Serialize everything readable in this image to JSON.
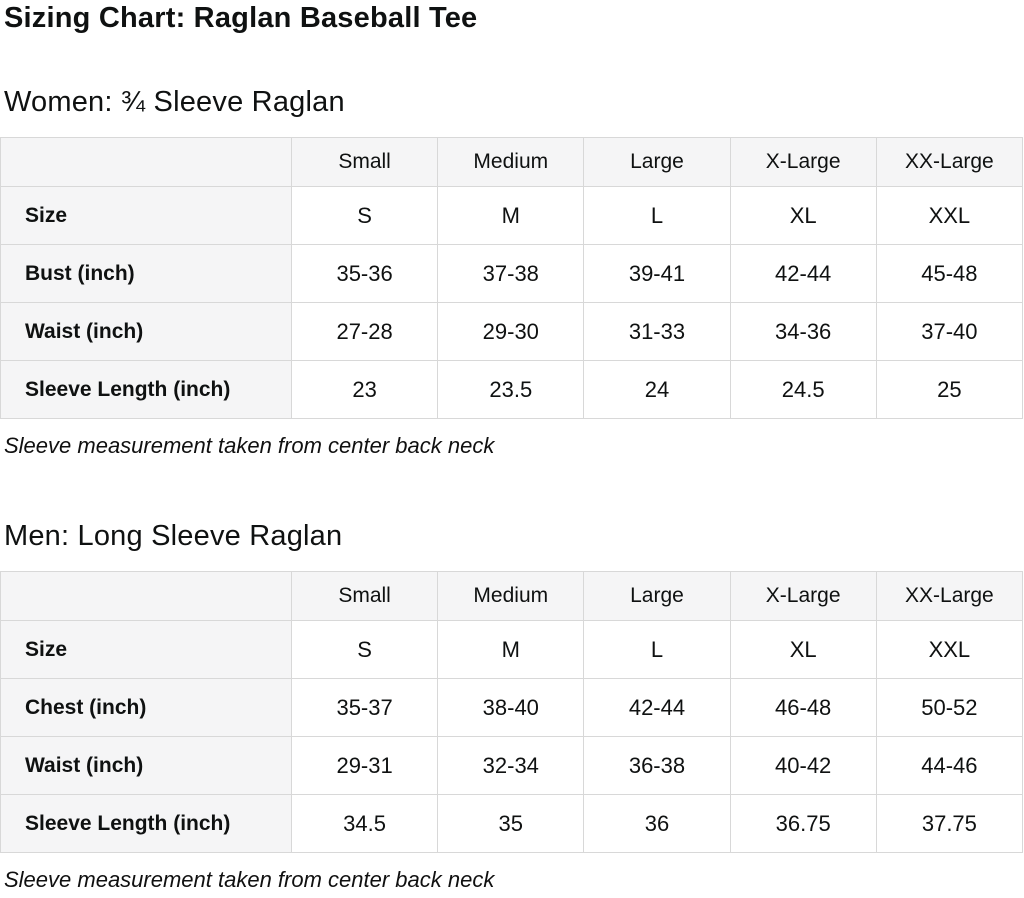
{
  "page": {
    "title": "Sizing Chart: Raglan Baseball Tee"
  },
  "colors": {
    "text": "#0f1111",
    "header_bg": "#f5f5f6",
    "label_bg": "#f5f5f6",
    "cell_bg": "#ffffff",
    "border": "#d8d8d8"
  },
  "sections": [
    {
      "heading": "Women: ¾ Sleeve Raglan",
      "note": "Sleeve measurement taken from center back neck",
      "table": {
        "columns": [
          "",
          "Small",
          "Medium",
          "Large",
          "X-Large",
          "XX-Large"
        ],
        "rows": [
          {
            "label": "Size",
            "values": [
              "S",
              "M",
              "L",
              "XL",
              "XXL"
            ]
          },
          {
            "label": "Bust (inch)",
            "values": [
              "35-36",
              "37-38",
              "39-41",
              "42-44",
              "45-48"
            ]
          },
          {
            "label": "Waist (inch)",
            "values": [
              "27-28",
              "29-30",
              "31-33",
              "34-36",
              "37-40"
            ]
          },
          {
            "label": "Sleeve Length (inch)",
            "values": [
              "23",
              "23.5",
              "24",
              "24.5",
              "25"
            ]
          }
        ]
      }
    },
    {
      "heading": "Men: Long Sleeve Raglan",
      "note": "Sleeve measurement taken from center back neck",
      "table": {
        "columns": [
          "",
          "Small",
          "Medium",
          "Large",
          "X-Large",
          "XX-Large"
        ],
        "rows": [
          {
            "label": "Size",
            "values": [
              "S",
              "M",
              "L",
              "XL",
              "XXL"
            ]
          },
          {
            "label": "Chest (inch)",
            "values": [
              "35-37",
              "38-40",
              "42-44",
              "46-48",
              "50-52"
            ]
          },
          {
            "label": "Waist (inch)",
            "values": [
              "29-31",
              "32-34",
              "36-38",
              "40-42",
              "44-46"
            ]
          },
          {
            "label": "Sleeve Length (inch)",
            "values": [
              "34.5",
              "35",
              "36",
              "36.75",
              "37.75"
            ]
          }
        ]
      }
    }
  ]
}
